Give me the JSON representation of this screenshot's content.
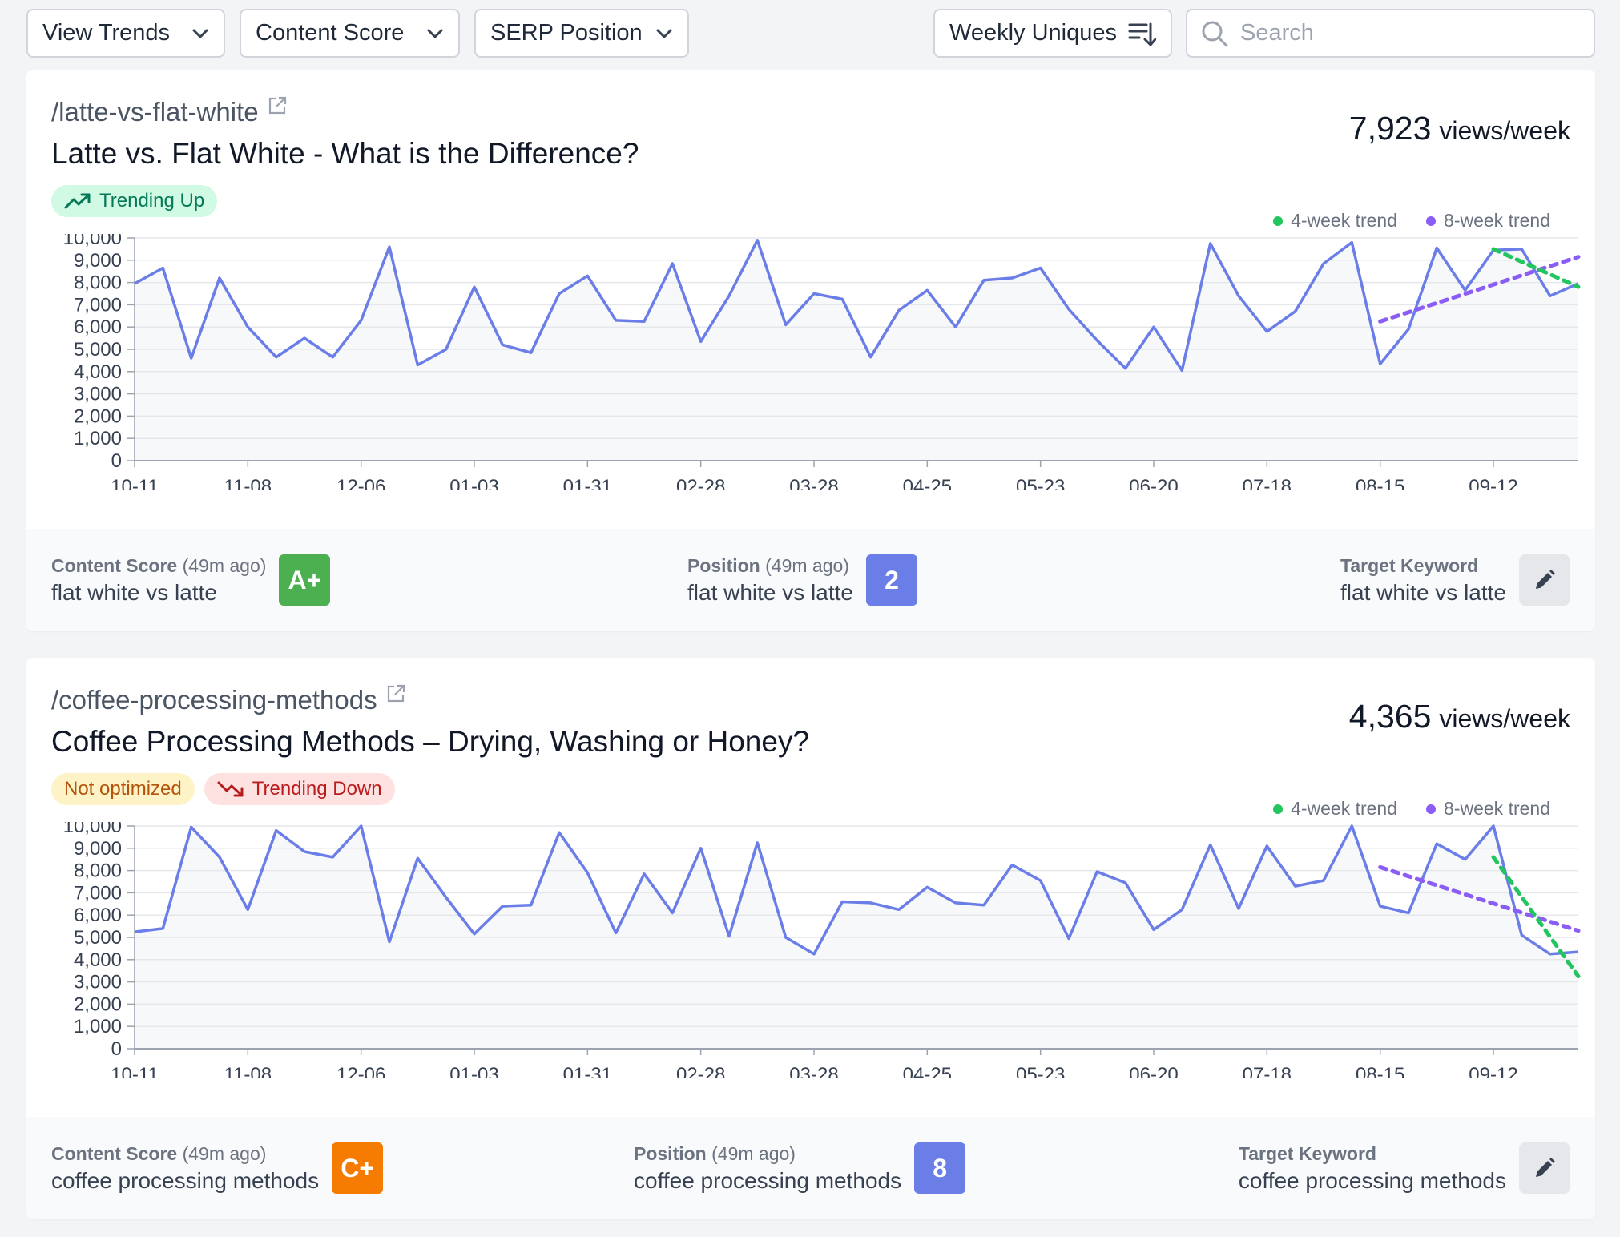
{
  "toolbar": {
    "view_trends": "View Trends",
    "content_score": "Content Score",
    "serp_position": "SERP Position",
    "weekly_uniques": "Weekly Uniques",
    "search_placeholder": "Search"
  },
  "colors": {
    "series": "#6b7ee8",
    "trend4": "#22c55e",
    "trend8": "#8b5cf6",
    "grade_a": "#4caf50",
    "grade_c": "#f57c00",
    "position": "#6b7ee8"
  },
  "icons": [
    "chevron-down-icon",
    "sort-icon",
    "search-icon",
    "external-link-icon",
    "trending-up-icon",
    "trending-down-icon",
    "pencil-icon"
  ],
  "cards": [
    {
      "slug": "/latte-vs-flat-white",
      "title": "Latte vs. Flat White - What is the Difference?",
      "views_number": "7,923",
      "views_unit": "views/week",
      "badges": [
        {
          "text": "Trending Up",
          "kind": "up"
        }
      ],
      "legend_4": "4-week trend",
      "legend_8": "8-week trend",
      "footer": {
        "score_label": "Content Score",
        "score_time": "(49m ago)",
        "score_keyword": "flat white vs latte",
        "grade": "A+",
        "position_label": "Position",
        "position_time": "(49m ago)",
        "position_keyword": "flat white vs latte",
        "position": "2",
        "target_label": "Target Keyword",
        "target_keyword": "flat white vs latte"
      }
    },
    {
      "slug": "/coffee-processing-methods",
      "title": "Coffee Processing Methods – Drying, Washing or Honey?",
      "views_number": "4,365",
      "views_unit": "views/week",
      "badges": [
        {
          "text": "Not optimized",
          "kind": "warn"
        },
        {
          "text": "Trending Down",
          "kind": "down"
        }
      ],
      "legend_4": "4-week trend",
      "legend_8": "8-week trend",
      "footer": {
        "score_label": "Content Score",
        "score_time": "(49m ago)",
        "score_keyword": "coffee processing methods",
        "grade": "C+",
        "position_label": "Position",
        "position_time": "(49m ago)",
        "position_keyword": "coffee processing methods",
        "position": "8",
        "target_label": "Target Keyword",
        "target_keyword": "coffee processing methods"
      }
    }
  ],
  "chart_data": [
    {
      "type": "line",
      "ylim": [
        0,
        10000
      ],
      "yticks": [
        "0",
        "1,000",
        "2,000",
        "3,000",
        "4,000",
        "5,000",
        "6,000",
        "7,000",
        "8,000",
        "9,000",
        "10,000"
      ],
      "xtick_labels": [
        "10-11",
        "11-08",
        "12-06",
        "01-03",
        "01-31",
        "02-28",
        "03-28",
        "04-25",
        "05-23",
        "06-20",
        "07-18",
        "08-15",
        "09-12"
      ],
      "xtick_every": 4,
      "series": [
        {
          "values": [
            7950,
            8650,
            4600,
            8200,
            6000,
            4650,
            5500,
            4650,
            6300,
            9600,
            4300,
            5000,
            7800,
            5200,
            4850,
            7500,
            8300,
            6300,
            6250,
            8850,
            5350,
            7400,
            9900,
            6100,
            7500,
            7250,
            4650,
            6750,
            7650,
            6000,
            8100,
            8200,
            8650,
            6800,
            5400,
            4150,
            6000,
            4050,
            9750,
            7400,
            5800,
            6700,
            8850,
            9800,
            4350,
            5900,
            9550,
            7650,
            9450,
            9500,
            7400,
            7950
          ]
        }
      ],
      "trend_4": {
        "from_index": 48,
        "to_index": 51,
        "from_value": 9500,
        "to_value": 7800
      },
      "trend_8": {
        "from_index": 44,
        "to_index": 51,
        "from_value": 6250,
        "to_value": 9150
      }
    },
    {
      "type": "line",
      "ylim": [
        0,
        10000
      ],
      "yticks": [
        "0",
        "1,000",
        "2,000",
        "3,000",
        "4,000",
        "5,000",
        "6,000",
        "7,000",
        "8,000",
        "9,000",
        "10,000"
      ],
      "xtick_labels": [
        "10-11",
        "11-08",
        "12-06",
        "01-03",
        "01-31",
        "02-28",
        "03-28",
        "04-25",
        "05-23",
        "06-20",
        "07-18",
        "08-15",
        "09-12"
      ],
      "xtick_every": 4,
      "series": [
        {
          "values": [
            5250,
            5400,
            9950,
            8600,
            6250,
            9800,
            8850,
            8600,
            10000,
            4800,
            8550,
            6800,
            5150,
            6400,
            6450,
            9700,
            7900,
            5200,
            7850,
            6100,
            9000,
            5050,
            9250,
            5000,
            4250,
            6600,
            6550,
            6250,
            7250,
            6550,
            6450,
            8250,
            7550,
            4950,
            7950,
            7450,
            5350,
            6250,
            9150,
            6300,
            9100,
            7300,
            7550,
            10000,
            6400,
            6100,
            9200,
            8500,
            10000,
            5100,
            4250,
            4350
          ]
        }
      ],
      "trend_4": {
        "from_index": 48,
        "to_index": 51,
        "from_value": 8600,
        "to_value": 3250
      },
      "trend_8": {
        "from_index": 44,
        "to_index": 51,
        "from_value": 8150,
        "to_value": 5300
      }
    }
  ]
}
